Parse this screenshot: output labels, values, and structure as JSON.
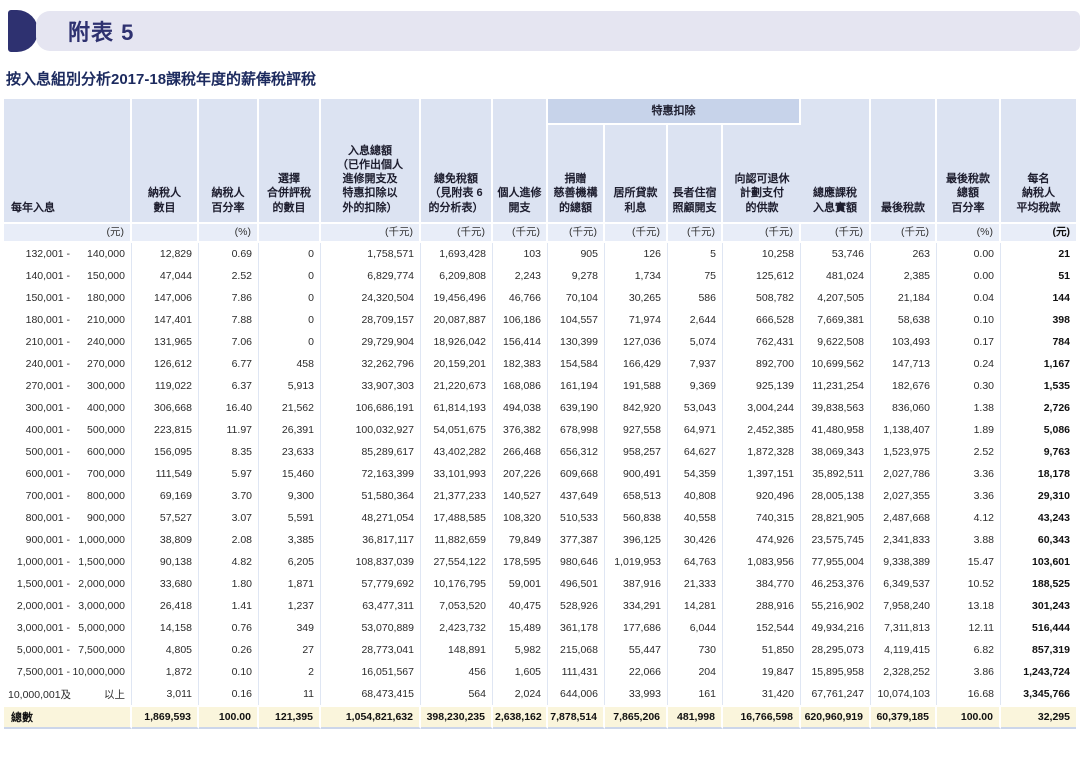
{
  "banner": {
    "label": "附表 5"
  },
  "page": {
    "title": "按入息組別分析2017-18課稅年度的薪俸稅評稅"
  },
  "colors": {
    "accent_navy": "#2e3170",
    "banner_bg": "#e5e5f1",
    "header_bg": "#dce3f2",
    "group_band_bg": "#c7d3ea",
    "unit_row_bg": "#e8edf8",
    "total_row_bg": "#faf5dc"
  },
  "table": {
    "group_header": "特惠扣除",
    "columns": [
      {
        "label": "每年入息",
        "unit": "(元)"
      },
      {
        "label": "納稅人\n數目",
        "unit": ""
      },
      {
        "label": "納稅人\n百分率",
        "unit": "(%)"
      },
      {
        "label": "選擇\n合併評稅\n的數目",
        "unit": ""
      },
      {
        "label": "入息總額\n（已作出個人\n進修開支及\n特惠扣除以\n外的扣除）",
        "unit": "(千元)"
      },
      {
        "label": "總免稅額\n（見附表 6\n的分析表）",
        "unit": "(千元)"
      },
      {
        "label": "個人進修\n開支",
        "unit": "(千元)"
      },
      {
        "label": "捐贈\n慈善機構\n的總額",
        "unit": "(千元)",
        "group": true
      },
      {
        "label": "居所貸款\n利息",
        "unit": "(千元)",
        "group": true
      },
      {
        "label": "長者住宿\n照顧開支",
        "unit": "(千元)",
        "group": true
      },
      {
        "label": "向認可退休\n計劃支付\n的供款",
        "unit": "(千元)",
        "group": true
      },
      {
        "label": "總應課稅\n入息實額",
        "unit": "(千元)"
      },
      {
        "label": "最後稅款",
        "unit": "(千元)"
      },
      {
        "label": "最後稅款\n總額\n百分率",
        "unit": "(%)"
      },
      {
        "label": "每名\n納稅人\n平均稅款",
        "unit": "(元)",
        "bold": true
      }
    ],
    "rows": [
      {
        "lo": "132,001 -",
        "hi": "140,000",
        "values": [
          "12,829",
          "0.69",
          "0",
          "1,758,571",
          "1,693,428",
          "103",
          "905",
          "126",
          "5",
          "10,258",
          "53,746",
          "263",
          "0.00",
          "21"
        ]
      },
      {
        "lo": "140,001 -",
        "hi": "150,000",
        "values": [
          "47,044",
          "2.52",
          "0",
          "6,829,774",
          "6,209,808",
          "2,243",
          "9,278",
          "1,734",
          "75",
          "125,612",
          "481,024",
          "2,385",
          "0.00",
          "51"
        ]
      },
      {
        "lo": "150,001 -",
        "hi": "180,000",
        "values": [
          "147,006",
          "7.86",
          "0",
          "24,320,504",
          "19,456,496",
          "46,766",
          "70,104",
          "30,265",
          "586",
          "508,782",
          "4,207,505",
          "21,184",
          "0.04",
          "144"
        ]
      },
      {
        "lo": "180,001 -",
        "hi": "210,000",
        "values": [
          "147,401",
          "7.88",
          "0",
          "28,709,157",
          "20,087,887",
          "106,186",
          "104,557",
          "71,974",
          "2,644",
          "666,528",
          "7,669,381",
          "58,638",
          "0.10",
          "398"
        ]
      },
      {
        "lo": "210,001 -",
        "hi": "240,000",
        "values": [
          "131,965",
          "7.06",
          "0",
          "29,729,904",
          "18,926,042",
          "156,414",
          "130,399",
          "127,036",
          "5,074",
          "762,431",
          "9,622,508",
          "103,493",
          "0.17",
          "784"
        ]
      },
      {
        "lo": "240,001 -",
        "hi": "270,000",
        "values": [
          "126,612",
          "6.77",
          "458",
          "32,262,796",
          "20,159,201",
          "182,383",
          "154,584",
          "166,429",
          "7,937",
          "892,700",
          "10,699,562",
          "147,713",
          "0.24",
          "1,167"
        ]
      },
      {
        "lo": "270,001 -",
        "hi": "300,000",
        "values": [
          "119,022",
          "6.37",
          "5,913",
          "33,907,303",
          "21,220,673",
          "168,086",
          "161,194",
          "191,588",
          "9,369",
          "925,139",
          "11,231,254",
          "182,676",
          "0.30",
          "1,535"
        ]
      },
      {
        "lo": "300,001 -",
        "hi": "400,000",
        "values": [
          "306,668",
          "16.40",
          "21,562",
          "106,686,191",
          "61,814,193",
          "494,038",
          "639,190",
          "842,920",
          "53,043",
          "3,004,244",
          "39,838,563",
          "836,060",
          "1.38",
          "2,726"
        ]
      },
      {
        "lo": "400,001 -",
        "hi": "500,000",
        "values": [
          "223,815",
          "11.97",
          "26,391",
          "100,032,927",
          "54,051,675",
          "376,382",
          "678,998",
          "927,558",
          "64,971",
          "2,452,385",
          "41,480,958",
          "1,138,407",
          "1.89",
          "5,086"
        ]
      },
      {
        "lo": "500,001 -",
        "hi": "600,000",
        "values": [
          "156,095",
          "8.35",
          "23,633",
          "85,289,617",
          "43,402,282",
          "266,468",
          "656,312",
          "958,257",
          "64,627",
          "1,872,328",
          "38,069,343",
          "1,523,975",
          "2.52",
          "9,763"
        ]
      },
      {
        "lo": "600,001 -",
        "hi": "700,000",
        "values": [
          "111,549",
          "5.97",
          "15,460",
          "72,163,399",
          "33,101,993",
          "207,226",
          "609,668",
          "900,491",
          "54,359",
          "1,397,151",
          "35,892,511",
          "2,027,786",
          "3.36",
          "18,178"
        ]
      },
      {
        "lo": "700,001 -",
        "hi": "800,000",
        "values": [
          "69,169",
          "3.70",
          "9,300",
          "51,580,364",
          "21,377,233",
          "140,527",
          "437,649",
          "658,513",
          "40,808",
          "920,496",
          "28,005,138",
          "2,027,355",
          "3.36",
          "29,310"
        ]
      },
      {
        "lo": "800,001 -",
        "hi": "900,000",
        "values": [
          "57,527",
          "3.07",
          "5,591",
          "48,271,054",
          "17,488,585",
          "108,320",
          "510,533",
          "560,838",
          "40,558",
          "740,315",
          "28,821,905",
          "2,487,668",
          "4.12",
          "43,243"
        ]
      },
      {
        "lo": "900,001 -",
        "hi": "1,000,000",
        "values": [
          "38,809",
          "2.08",
          "3,385",
          "36,817,117",
          "11,882,659",
          "79,849",
          "377,387",
          "396,125",
          "30,426",
          "474,926",
          "23,575,745",
          "2,341,833",
          "3.88",
          "60,343"
        ]
      },
      {
        "lo": "1,000,001 -",
        "hi": "1,500,000",
        "values": [
          "90,138",
          "4.82",
          "6,205",
          "108,837,039",
          "27,554,122",
          "178,595",
          "980,646",
          "1,019,953",
          "64,763",
          "1,083,956",
          "77,955,004",
          "9,338,389",
          "15.47",
          "103,601"
        ]
      },
      {
        "lo": "1,500,001 -",
        "hi": "2,000,000",
        "values": [
          "33,680",
          "1.80",
          "1,871",
          "57,779,692",
          "10,176,795",
          "59,001",
          "496,501",
          "387,916",
          "21,333",
          "384,770",
          "46,253,376",
          "6,349,537",
          "10.52",
          "188,525"
        ]
      },
      {
        "lo": "2,000,001 -",
        "hi": "3,000,000",
        "values": [
          "26,418",
          "1.41",
          "1,237",
          "63,477,311",
          "7,053,520",
          "40,475",
          "528,926",
          "334,291",
          "14,281",
          "288,916",
          "55,216,902",
          "7,958,240",
          "13.18",
          "301,243"
        ]
      },
      {
        "lo": "3,000,001 -",
        "hi": "5,000,000",
        "values": [
          "14,158",
          "0.76",
          "349",
          "53,070,889",
          "2,423,732",
          "15,489",
          "361,178",
          "177,686",
          "6,044",
          "152,544",
          "49,934,216",
          "7,311,813",
          "12.11",
          "516,444"
        ]
      },
      {
        "lo": "5,000,001 -",
        "hi": "7,500,000",
        "values": [
          "4,805",
          "0.26",
          "27",
          "28,773,041",
          "148,891",
          "5,982",
          "215,068",
          "55,447",
          "730",
          "51,850",
          "28,295,073",
          "4,119,415",
          "6.82",
          "857,319"
        ]
      },
      {
        "lo": "7,500,001 -",
        "hi": "10,000,000",
        "values": [
          "1,872",
          "0.10",
          "2",
          "16,051,567",
          "456",
          "1,605",
          "111,431",
          "22,066",
          "204",
          "19,847",
          "15,895,958",
          "2,328,252",
          "3.86",
          "1,243,724"
        ]
      },
      {
        "lo": "10,000,001及",
        "hi": "以上",
        "values": [
          "3,011",
          "0.16",
          "11",
          "68,473,415",
          "564",
          "2,024",
          "644,006",
          "33,993",
          "161",
          "31,420",
          "67,761,247",
          "10,074,103",
          "16.68",
          "3,345,766"
        ]
      }
    ],
    "total": {
      "label": "總數",
      "values": [
        "1,869,593",
        "100.00",
        "121,395",
        "1,054,821,632",
        "398,230,235",
        "2,638,162",
        "7,878,514",
        "7,865,206",
        "481,998",
        "16,766,598",
        "620,960,919",
        "60,379,185",
        "100.00",
        "32,295"
      ]
    }
  }
}
